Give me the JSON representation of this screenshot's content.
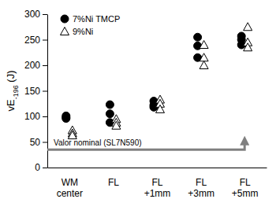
{
  "chart_data": {
    "type": "scatter",
    "y_label": "vE-196 (J)",
    "categories": [
      "WM center",
      "FL",
      "FL +1mm",
      "FL +3mm",
      "FL +5mm"
    ],
    "series": [
      {
        "name": "7%Ni TMCP",
        "color": "#000000",
        "marker": "circle",
        "values": [
          [
            101,
            98,
            96
          ],
          [
            123,
            105,
            88
          ],
          [
            130,
            122,
            118
          ],
          [
            255,
            238,
            215
          ],
          [
            257,
            250,
            240
          ]
        ]
      },
      {
        "name": "9%Ni",
        "color": "#000000",
        "marker": "triangle-open",
        "values": [
          [
            73,
            67,
            63
          ],
          [
            95,
            88,
            82
          ],
          [
            133,
            125,
            114
          ],
          [
            240,
            215,
            200
          ],
          [
            275,
            245,
            235
          ]
        ]
      }
    ],
    "ylim": [
      0,
      300
    ],
    "yticks": [
      0,
      50,
      100,
      150,
      200,
      250,
      300
    ],
    "grid": false,
    "legend": "upper left",
    "annotations": [
      {
        "text": "Valor nominal (SL7N590)",
        "y": 35,
        "x": "FL +5mm",
        "arrow_to": 62,
        "color": "#808080"
      }
    ]
  }
}
